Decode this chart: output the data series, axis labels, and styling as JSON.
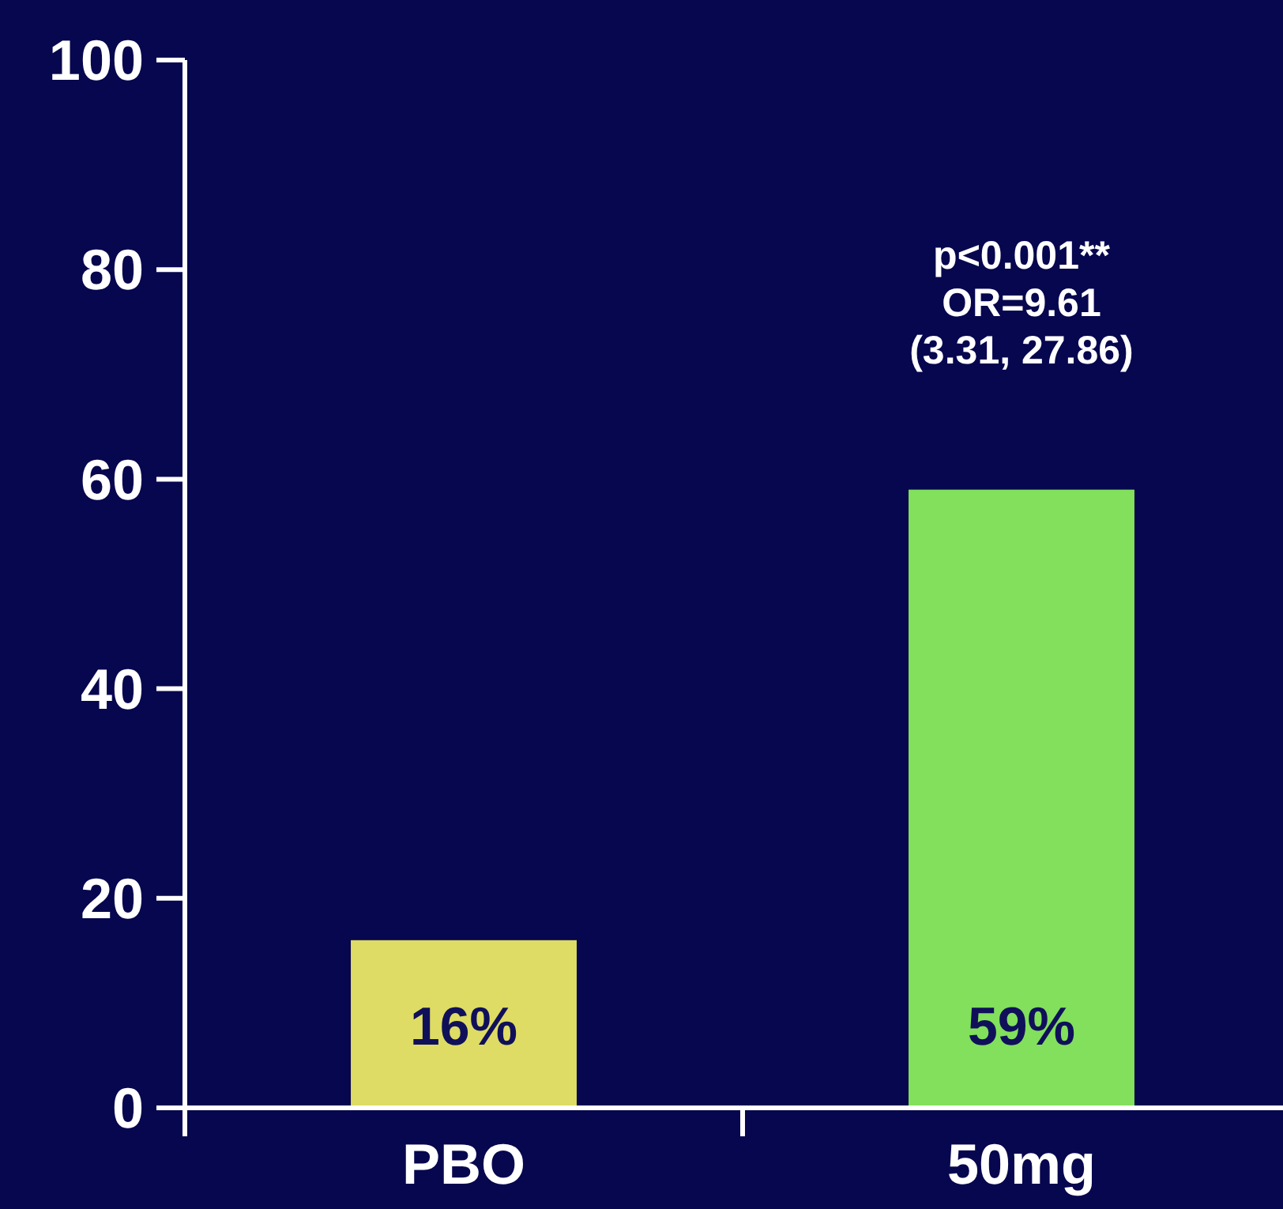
{
  "chart_data": {
    "type": "bar",
    "categories": [
      "PBO",
      "50mg"
    ],
    "values": [
      16,
      59
    ],
    "colors": [
      "#dedc64",
      "#82e05c"
    ],
    "value_labels": [
      "16%",
      "59%"
    ],
    "ylim": [
      0,
      100
    ],
    "yticks": [
      0,
      20,
      40,
      60,
      80,
      100
    ],
    "annotations": [
      {
        "text": "p<0.001**\nOR=9.61\n(3.31, 27.86)",
        "x": "50mg",
        "y": 59
      }
    ]
  }
}
